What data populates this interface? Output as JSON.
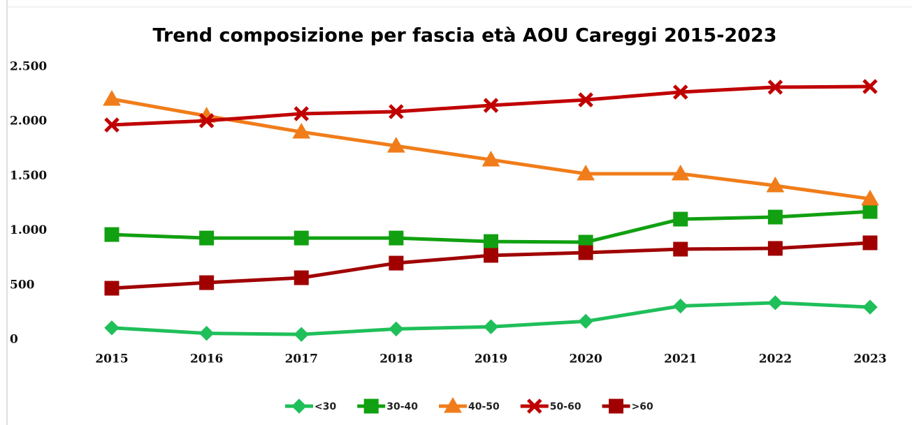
{
  "chart_data": {
    "type": "line",
    "title": "Trend composizione per fascia età AOU Careggi 2015-2023",
    "categories": [
      "2015",
      "2016",
      "2017",
      "2018",
      "2019",
      "2020",
      "2021",
      "2022",
      "2023"
    ],
    "series": [
      {
        "name": "<30",
        "color": "#1fbf5a",
        "marker": "diamond",
        "values": [
          110,
          60,
          50,
          100,
          120,
          170,
          310,
          340,
          300
        ]
      },
      {
        "name": "30-40",
        "color": "#11a011",
        "marker": "square",
        "values": [
          965,
          933,
          933,
          933,
          901,
          895,
          1106,
          1125,
          1176
        ]
      },
      {
        "name": "40-50",
        "color": "#f07d1a",
        "marker": "triangle",
        "values": [
          2206,
          2052,
          1905,
          1777,
          1650,
          1522,
          1522,
          1413,
          1292
        ]
      },
      {
        "name": "50-60",
        "color": "#c00000",
        "marker": "x",
        "values": [
          1969,
          2008,
          2072,
          2091,
          2148,
          2199,
          2270,
          2315,
          2321
        ]
      },
      {
        "name": ">60",
        "color": "#a00000",
        "marker": "square",
        "values": [
          473,
          524,
          569,
          703,
          774,
          799,
          831,
          838,
          889
        ]
      }
    ],
    "ylim": [
      0,
      2500
    ],
    "yticks": [
      0,
      500,
      {
        "value": 1000,
        "label": "1.000"
      },
      {
        "value": 1500,
        "label": "1.500"
      },
      {
        "value": 2000,
        "label": "2.000"
      },
      {
        "value": 2500,
        "label": "2.500"
      }
    ],
    "grid": false,
    "legend": "bottom"
  }
}
